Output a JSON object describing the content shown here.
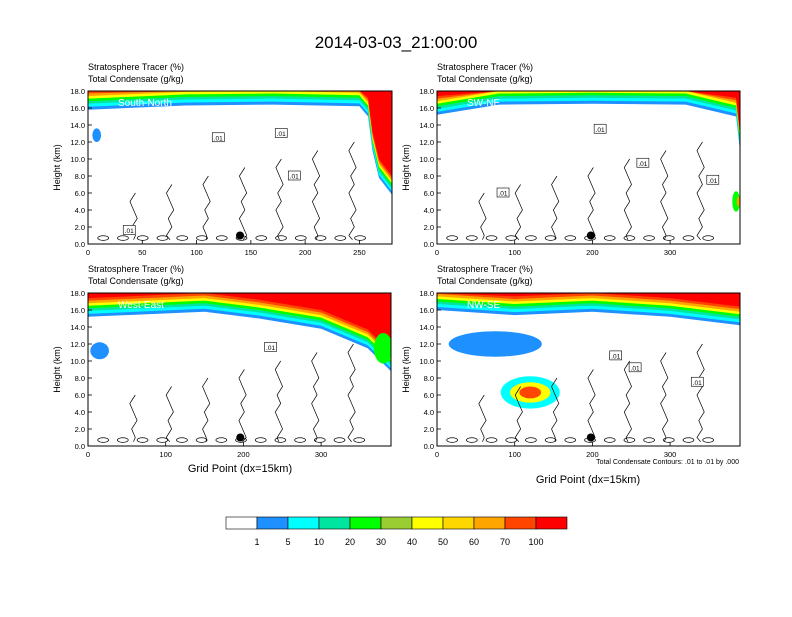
{
  "title": "2014-03-03_21:00:00",
  "colors": {
    "white": "#ffffff",
    "c1": "#1e90ff",
    "c5": "#00ffff",
    "c10": "#00e5a0",
    "c20": "#00ff00",
    "c30": "#9acd32",
    "c40": "#ffff00",
    "c50": "#ffd700",
    "c60": "#ffa500",
    "c70": "#ff4500",
    "c100": "#ff0000",
    "contour": "#000000"
  },
  "chart_data": [
    {
      "type": "heatmap",
      "panel": "South-North",
      "label": "South-North",
      "subtitle1": "Stratosphere Tracer   (%)",
      "subtitle2": "Total Condensate   (g/kg)",
      "ylabel": "Height (km)",
      "xlabel": "",
      "xlim": [
        0,
        280
      ],
      "ylim": [
        0,
        18
      ],
      "xticks": [
        "0",
        "50",
        "100",
        "150",
        "200",
        "250"
      ],
      "xtick_values": [
        0,
        50,
        100,
        150,
        200,
        250
      ],
      "yticks": [
        "0.0",
        "2.0",
        "4.0",
        "6.0",
        "8.0",
        "10.0",
        "12.0",
        "14.0",
        "16.0",
        "18.0"
      ],
      "contour_labels": [
        ".01",
        ".01",
        ".01",
        ".01"
      ],
      "contour_label_positions": [
        [
          120,
          12.5
        ],
        [
          178,
          13
        ],
        [
          190,
          8
        ],
        [
          38,
          1.6
        ]
      ],
      "marker": [
        140,
        1.0
      ],
      "tropopause": [
        [
          0,
          15.8
        ],
        [
          90,
          16.3
        ],
        [
          170,
          16.4
        ],
        [
          250,
          16.2
        ],
        [
          258,
          15
        ],
        [
          262,
          11
        ],
        [
          268,
          7.8
        ],
        [
          280,
          5.8
        ]
      ]
    },
    {
      "type": "heatmap",
      "panel": "SW-NE",
      "label": "SW-NE",
      "subtitle1": "Stratosphere Tracer   (%)",
      "subtitle2": "Total Condensate   (g/kg)",
      "ylabel": "Height (km)",
      "xlabel": "",
      "xlim": [
        0,
        390
      ],
      "ylim": [
        0,
        18
      ],
      "xticks": [
        "0",
        "100",
        "200",
        "300"
      ],
      "xtick_values": [
        0,
        100,
        200,
        300
      ],
      "yticks": [
        "0.0",
        "2.0",
        "4.0",
        "6.0",
        "8.0",
        "10.0",
        "12.0",
        "14.0",
        "16.0",
        "18.0"
      ],
      "contour_labels": [
        ".01",
        ".01",
        ".01",
        ".01"
      ],
      "contour_label_positions": [
        [
          210,
          13.5
        ],
        [
          265,
          9.5
        ],
        [
          85,
          6
        ],
        [
          355,
          7.5
        ]
      ],
      "marker": [
        198,
        1.0
      ],
      "tropopause": [
        [
          0,
          15.2
        ],
        [
          80,
          16.4
        ],
        [
          200,
          16.5
        ],
        [
          320,
          16.4
        ],
        [
          385,
          15
        ],
        [
          390,
          11
        ]
      ]
    },
    {
      "type": "heatmap",
      "panel": "West-East",
      "label": "West-East",
      "subtitle1": "Stratosphere Tracer   (%)",
      "subtitle2": "Total Condensate   (g/kg)",
      "ylabel": "Height (km)",
      "xlabel": "Grid Point (dx=15km)",
      "xlim": [
        0,
        390
      ],
      "ylim": [
        0,
        18
      ],
      "xticks": [
        "0",
        "100",
        "200",
        "300"
      ],
      "xtick_values": [
        0,
        100,
        200,
        300
      ],
      "yticks": [
        "0.0",
        "2.0",
        "4.0",
        "6.0",
        "8.0",
        "10.0",
        "12.0",
        "14.0",
        "16.0",
        "18.0"
      ],
      "contour_labels": [
        ".01"
      ],
      "contour_label_positions": [
        [
          235,
          11.6
        ]
      ],
      "marker": [
        196,
        1.0
      ],
      "tropopause": [
        [
          0,
          15.2
        ],
        [
          150,
          15.8
        ],
        [
          220,
          15.0
        ],
        [
          300,
          13.8
        ],
        [
          360,
          11.5
        ],
        [
          390,
          8.8
        ]
      ]
    },
    {
      "type": "heatmap",
      "panel": "NW-SE",
      "label": "NW-SE",
      "subtitle1": "Stratosphere Tracer   (%)",
      "subtitle2": "Total Condensate   (g/kg)",
      "ylabel": "Height (km)",
      "xlabel": "Grid Point (dx=15km)",
      "xlim": [
        0,
        390
      ],
      "ylim": [
        0,
        18
      ],
      "xticks": [
        "0",
        "100",
        "200",
        "300"
      ],
      "xtick_values": [
        0,
        100,
        200,
        300
      ],
      "yticks": [
        "0.0",
        "2.0",
        "4.0",
        "6.0",
        "8.0",
        "10.0",
        "12.0",
        "14.0",
        "16.0",
        "18.0"
      ],
      "contour_labels": [
        ".01",
        ".01",
        ".01"
      ],
      "contour_label_positions": [
        [
          230,
          10.6
        ],
        [
          335,
          7.5
        ],
        [
          255,
          9.2
        ]
      ],
      "marker": [
        198,
        1.0
      ],
      "tropopause": [
        [
          0,
          16.0
        ],
        [
          100,
          15.4
        ],
        [
          200,
          15.8
        ],
        [
          300,
          15.2
        ],
        [
          390,
          14.2
        ]
      ],
      "footnote": "Total Condensate Contours: .01 to .01 by .000"
    }
  ],
  "colorbar": {
    "labels": [
      "1",
      "5",
      "10",
      "20",
      "30",
      "40",
      "50",
      "60",
      "70",
      "100"
    ]
  }
}
